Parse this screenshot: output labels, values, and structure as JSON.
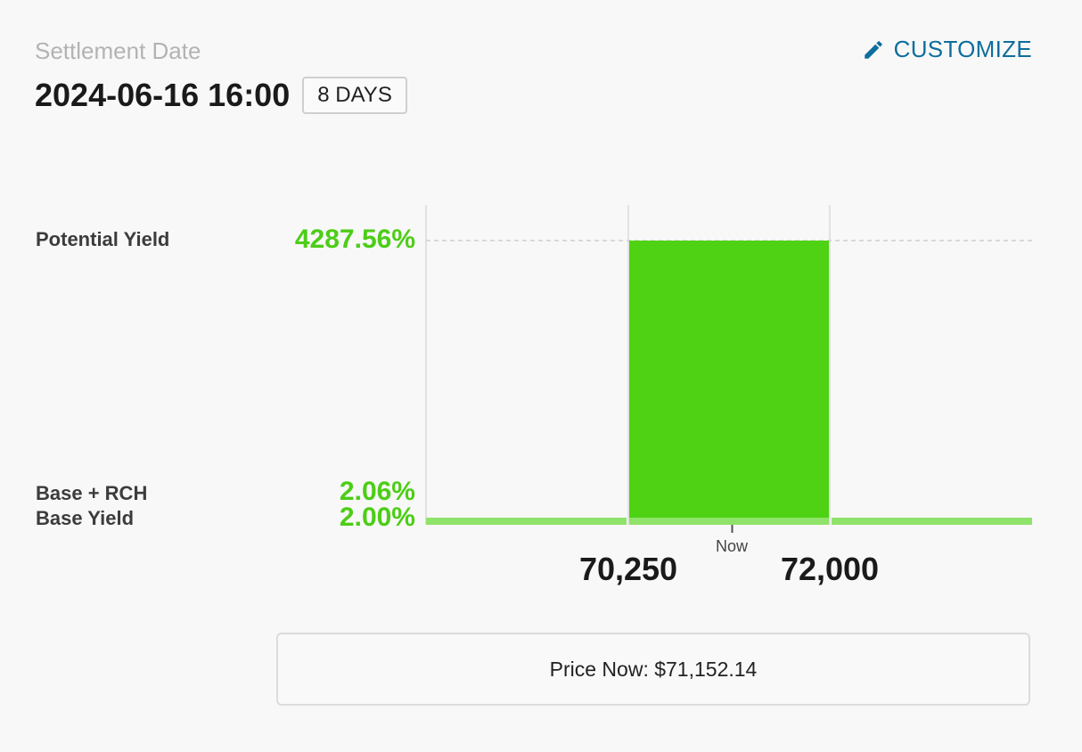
{
  "header": {
    "settlement_label": "Settlement Date",
    "settlement_date": "2024-06-16 16:00",
    "days_badge": "8 DAYS",
    "customize_label": "CUSTOMIZE",
    "customize_icon": "pencil-icon"
  },
  "y_labels": {
    "potential_name": "Potential Yield",
    "potential_value": "4287.56%",
    "base_rch_name": "Base + RCH",
    "base_rch_value": "2.06%",
    "base_name": "Base Yield",
    "base_value": "2.00%"
  },
  "x_labels": {
    "low": "70,250",
    "high": "72,000",
    "now": "Now"
  },
  "price_box": {
    "text": "Price Now: $71,152.14"
  },
  "colors": {
    "bar": "#4ed213",
    "base_line": "#8fe26a",
    "value_text": "#4dcd17",
    "accent": "#0e6e9e"
  },
  "chart_data": {
    "type": "bar",
    "x": [
      "< 70,250",
      "70,250 – 72,000",
      "> 72,000"
    ],
    "values": [
      2.06,
      4287.56,
      2.06
    ],
    "base_yield": 2.0,
    "base_rch": 2.06,
    "potential_yield": 4287.56,
    "range_low": 70250,
    "range_high": 72000,
    "current_price": 71152.14,
    "grid": true
  }
}
